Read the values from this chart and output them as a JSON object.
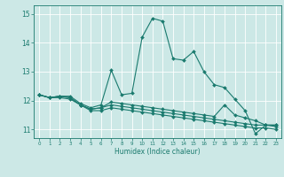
{
  "title": "",
  "xlabel": "Humidex (Indice chaleur)",
  "xlim": [
    -0.5,
    23.5
  ],
  "ylim": [
    10.7,
    15.3
  ],
  "yticks": [
    11,
    12,
    13,
    14,
    15
  ],
  "xticks": [
    0,
    1,
    2,
    3,
    4,
    5,
    6,
    7,
    8,
    9,
    10,
    11,
    12,
    13,
    14,
    15,
    16,
    17,
    18,
    19,
    20,
    21,
    22,
    23
  ],
  "bg_color": "#cce8e6",
  "grid_color": "#ffffff",
  "line_color": "#1a7a6e",
  "line1": {
    "x": [
      0,
      1,
      2,
      3,
      4,
      5,
      6,
      7,
      8,
      9,
      10,
      11,
      12,
      13,
      14,
      15,
      16,
      17,
      18,
      19,
      20,
      21,
      22,
      23
    ],
    "y": [
      12.2,
      12.1,
      12.15,
      12.15,
      11.9,
      11.75,
      11.85,
      13.05,
      12.2,
      12.25,
      14.2,
      14.85,
      14.75,
      13.45,
      13.4,
      13.7,
      13.0,
      12.55,
      12.45,
      12.05,
      11.65,
      10.85,
      11.15,
      11.15
    ]
  },
  "line2": {
    "x": [
      0,
      1,
      2,
      3,
      4,
      5,
      6,
      7,
      8,
      9,
      10,
      11,
      12,
      13,
      14,
      15,
      16,
      17,
      18,
      19,
      20,
      21,
      22,
      23
    ],
    "y": [
      12.2,
      12.1,
      12.15,
      12.1,
      11.85,
      11.7,
      11.75,
      11.95,
      11.9,
      11.85,
      11.8,
      11.75,
      11.7,
      11.65,
      11.6,
      11.55,
      11.5,
      11.45,
      11.85,
      11.5,
      11.4,
      11.3,
      11.15,
      11.15
    ]
  },
  "line3": {
    "x": [
      0,
      1,
      2,
      3,
      4,
      5,
      6,
      7,
      8,
      9,
      10,
      11,
      12,
      13,
      14,
      15,
      16,
      17,
      18,
      19,
      20,
      21,
      22,
      23
    ],
    "y": [
      12.2,
      12.1,
      12.15,
      12.1,
      11.85,
      11.7,
      11.75,
      11.85,
      11.8,
      11.75,
      11.7,
      11.65,
      11.6,
      11.55,
      11.5,
      11.45,
      11.4,
      11.35,
      11.3,
      11.25,
      11.2,
      11.15,
      11.15,
      11.1
    ]
  },
  "line4": {
    "x": [
      0,
      1,
      2,
      3,
      4,
      5,
      6,
      7,
      8,
      9,
      10,
      11,
      12,
      13,
      14,
      15,
      16,
      17,
      18,
      19,
      20,
      21,
      22,
      23
    ],
    "y": [
      12.2,
      12.1,
      12.1,
      12.05,
      11.85,
      11.65,
      11.65,
      11.75,
      11.7,
      11.65,
      11.6,
      11.55,
      11.5,
      11.45,
      11.4,
      11.35,
      11.3,
      11.25,
      11.2,
      11.15,
      11.1,
      11.05,
      11.05,
      11.0
    ]
  }
}
